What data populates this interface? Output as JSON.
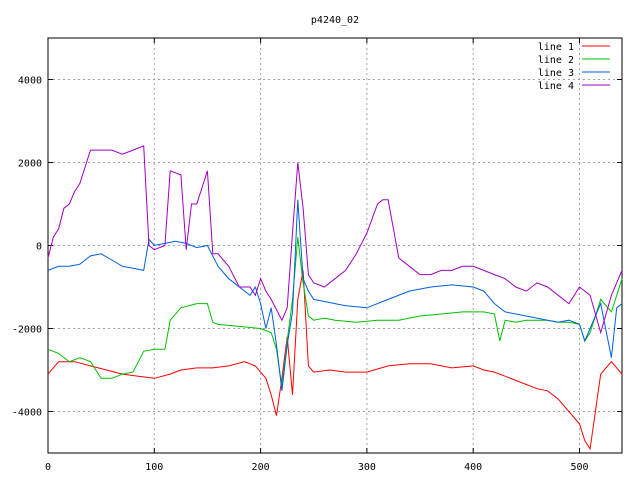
{
  "chart_data": {
    "type": "line",
    "title": "p4240_02",
    "xlabel": "",
    "ylabel": "",
    "xlim": [
      0,
      540
    ],
    "ylim": [
      -5000,
      5000
    ],
    "xticks": [
      0,
      100,
      200,
      300,
      400,
      500
    ],
    "yticks": [
      -4000,
      -2000,
      0,
      2000,
      4000
    ],
    "grid": true,
    "legend_position": "top-right",
    "series": [
      {
        "name": "line 1",
        "color": "#ff0000",
        "x": [
          0,
          10,
          25,
          40,
          55,
          70,
          85,
          100,
          115,
          125,
          140,
          155,
          170,
          185,
          195,
          205,
          210,
          215,
          220,
          225,
          230,
          235,
          240,
          245,
          250,
          265,
          280,
          300,
          320,
          340,
          360,
          380,
          400,
          410,
          420,
          430,
          440,
          450,
          460,
          470,
          480,
          490,
          500,
          505,
          510,
          520,
          530,
          540
        ],
        "y": [
          -3100,
          -2800,
          -2800,
          -2900,
          -3000,
          -3100,
          -3150,
          -3200,
          -3100,
          -3000,
          -2950,
          -2950,
          -2900,
          -2800,
          -2900,
          -3200,
          -3600,
          -4100,
          -3200,
          -2200,
          -3600,
          -1300,
          -600,
          -2900,
          -3050,
          -3000,
          -3050,
          -3050,
          -2900,
          -2850,
          -2850,
          -2950,
          -2900,
          -3000,
          -3050,
          -3150,
          -3250,
          -3350,
          -3450,
          -3500,
          -3700,
          -4000,
          -4300,
          -4700,
          -4900,
          -3100,
          -2800,
          -3100
        ]
      },
      {
        "name": "line 2",
        "color": "#00c000",
        "x": [
          0,
          10,
          20,
          30,
          40,
          50,
          60,
          70,
          80,
          90,
          100,
          110,
          115,
          125,
          140,
          150,
          155,
          160,
          180,
          200,
          210,
          215,
          220,
          225,
          230,
          235,
          240,
          245,
          250,
          260,
          270,
          290,
          310,
          330,
          350,
          370,
          390,
          410,
          420,
          425,
          430,
          440,
          450,
          460,
          470,
          480,
          490,
          500,
          505,
          510,
          520,
          530,
          540
        ],
        "y": [
          -2500,
          -2600,
          -2800,
          -2700,
          -2800,
          -3200,
          -3200,
          -3100,
          -3050,
          -2550,
          -2500,
          -2500,
          -1800,
          -1500,
          -1400,
          -1400,
          -1850,
          -1900,
          -1950,
          -2000,
          -2100,
          -2500,
          -3400,
          -2300,
          -1300,
          200,
          -900,
          -1700,
          -1800,
          -1750,
          -1800,
          -1850,
          -1800,
          -1800,
          -1700,
          -1650,
          -1600,
          -1600,
          -1650,
          -2300,
          -1800,
          -1850,
          -1800,
          -1800,
          -1800,
          -1850,
          -1850,
          -1900,
          -2300,
          -2100,
          -1300,
          -1600,
          -800
        ]
      },
      {
        "name": "line 3",
        "color": "#0060e0",
        "x": [
          0,
          10,
          20,
          30,
          40,
          50,
          60,
          70,
          80,
          90,
          95,
          100,
          110,
          120,
          130,
          140,
          150,
          160,
          170,
          180,
          190,
          195,
          200,
          205,
          210,
          215,
          220,
          225,
          230,
          235,
          240,
          245,
          250,
          260,
          270,
          280,
          300,
          320,
          340,
          360,
          380,
          400,
          410,
          420,
          430,
          440,
          450,
          460,
          470,
          480,
          490,
          500,
          505,
          510,
          520,
          530,
          535,
          540
        ],
        "y": [
          -600,
          -500,
          -500,
          -450,
          -250,
          -200,
          -350,
          -500,
          -550,
          -600,
          150,
          0,
          50,
          100,
          50,
          -50,
          0,
          -500,
          -800,
          -1000,
          -1200,
          -1000,
          -1400,
          -2000,
          -1500,
          -2400,
          -3500,
          -2400,
          -1600,
          1100,
          -800,
          -1100,
          -1300,
          -1350,
          -1400,
          -1450,
          -1500,
          -1300,
          -1100,
          -1000,
          -950,
          -1000,
          -1100,
          -1400,
          -1600,
          -1650,
          -1700,
          -1750,
          -1800,
          -1850,
          -1800,
          -1900,
          -2300,
          -2000,
          -1400,
          -2700,
          -1500,
          -1400
        ]
      },
      {
        "name": "line 4",
        "color": "#a000c0",
        "x": [
          0,
          5,
          10,
          15,
          20,
          25,
          30,
          35,
          40,
          50,
          60,
          70,
          80,
          90,
          95,
          100,
          110,
          115,
          125,
          130,
          135,
          140,
          150,
          155,
          160,
          170,
          180,
          190,
          195,
          200,
          205,
          210,
          220,
          225,
          230,
          235,
          240,
          245,
          250,
          260,
          270,
          280,
          290,
          300,
          310,
          315,
          320,
          330,
          340,
          350,
          360,
          370,
          380,
          390,
          400,
          410,
          420,
          430,
          440,
          450,
          460,
          470,
          480,
          490,
          500,
          505,
          510,
          520,
          530,
          540
        ],
        "y": [
          -300,
          200,
          400,
          900,
          1000,
          1300,
          1500,
          1900,
          2300,
          2300,
          2300,
          2200,
          2300,
          2400,
          0,
          -100,
          0,
          1800,
          1700,
          -100,
          1000,
          1000,
          1800,
          -200,
          -200,
          -500,
          -1000,
          -1000,
          -1200,
          -800,
          -1100,
          -1300,
          -1800,
          -1500,
          300,
          2000,
          900,
          -700,
          -900,
          -1000,
          -800,
          -600,
          -200,
          300,
          1000,
          1100,
          1100,
          -300,
          -500,
          -700,
          -700,
          -600,
          -600,
          -500,
          -500,
          -600,
          -700,
          -800,
          -1000,
          -1100,
          -900,
          -1000,
          -1200,
          -1400,
          -1000,
          -1100,
          -1200,
          -2100,
          -1200,
          -600
        ]
      }
    ]
  }
}
